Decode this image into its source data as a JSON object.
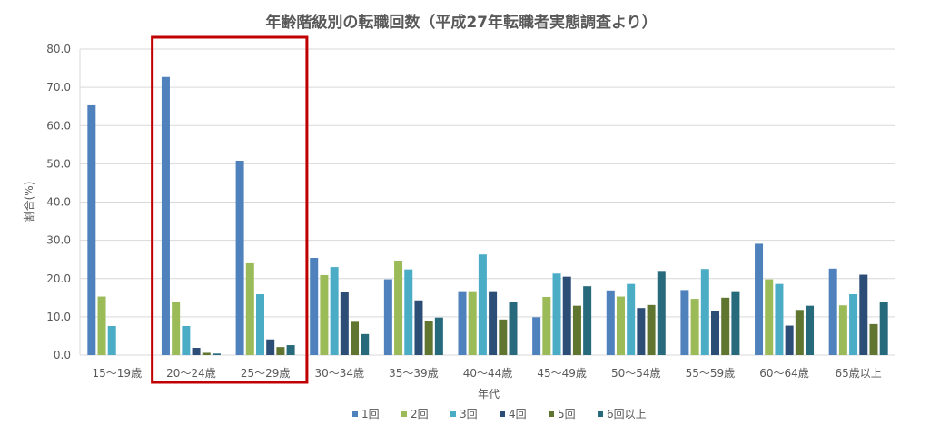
{
  "chart_data": {
    "type": "bar",
    "title": "年齢階級別の転職回数（平成27年転職者実態調査より）",
    "xlabel": "年代",
    "ylabel": "割合(%)",
    "ylim": [
      0,
      80
    ],
    "yticks": [
      "0.0",
      "10.0",
      "20.0",
      "30.0",
      "40.0",
      "50.0",
      "60.0",
      "70.0",
      "80.0"
    ],
    "grid": true,
    "legend_position": "bottom",
    "categories": [
      "15～19歳",
      "20～24歳",
      "25～29歳",
      "30～34歳",
      "35～39歳",
      "40～44歳",
      "45～49歳",
      "50～54歳",
      "55～59歳",
      "60～64歳",
      "65歳以上"
    ],
    "series": [
      {
        "name": "1回",
        "color": "#4f81bd",
        "values": [
          65.3,
          72.7,
          50.8,
          25.4,
          19.8,
          16.7,
          9.9,
          16.9,
          17.0,
          29.1,
          22.6
        ]
      },
      {
        "name": "2回",
        "color": "#9bbb59",
        "values": [
          15.3,
          14.0,
          24.0,
          20.9,
          24.7,
          16.7,
          15.2,
          15.3,
          14.7,
          19.8,
          13.0
        ]
      },
      {
        "name": "3回",
        "color": "#4bacc6",
        "values": [
          7.6,
          7.6,
          15.9,
          23.0,
          22.4,
          26.3,
          21.3,
          18.6,
          22.5,
          18.6,
          15.9
        ]
      },
      {
        "name": "4回",
        "color": "#2c4d75",
        "values": [
          0,
          1.9,
          4.1,
          16.4,
          14.3,
          16.7,
          20.5,
          12.3,
          11.4,
          7.7,
          21.0
        ]
      },
      {
        "name": "5回",
        "color": "#5f7530",
        "values": [
          0,
          0.6,
          2.1,
          8.7,
          9.0,
          9.3,
          12.9,
          13.1,
          15.0,
          11.8,
          8.1
        ]
      },
      {
        "name": "6回以上",
        "color": "#276a7c",
        "values": [
          0,
          0.4,
          2.6,
          5.5,
          9.8,
          13.9,
          18.0,
          22.0,
          16.7,
          12.9,
          14.0
        ]
      }
    ],
    "highlight": {
      "color": "#c00000",
      "categories": [
        "20～24歳",
        "25～29歳"
      ]
    }
  }
}
